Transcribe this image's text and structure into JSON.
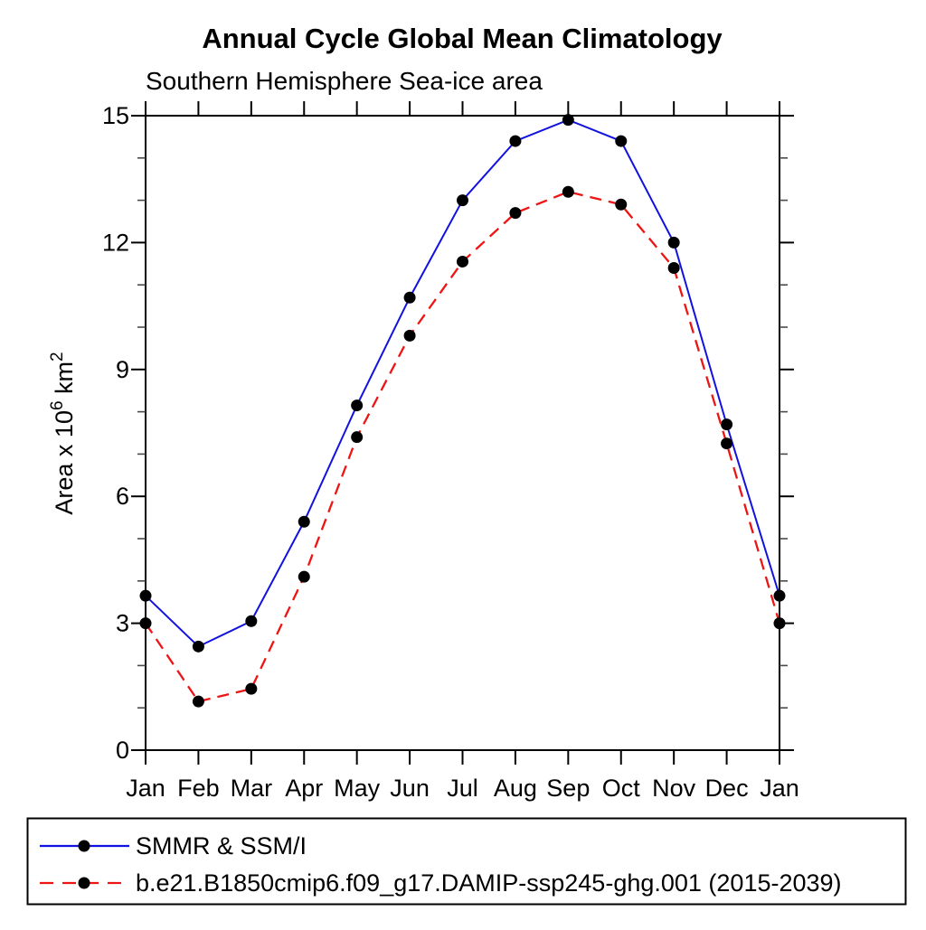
{
  "chart_data": {
    "type": "line",
    "title": "Annual Cycle Global Mean Climatology",
    "subtitle": "Southern Hemisphere Sea-ice area",
    "categories": [
      "Jan",
      "Feb",
      "Mar",
      "Apr",
      "May",
      "Jun",
      "Jul",
      "Aug",
      "Sep",
      "Oct",
      "Nov",
      "Dec",
      "Jan"
    ],
    "xlabel": "",
    "ylabel": "Area x 10^6 km^2",
    "ylabel_parts": [
      {
        "t": "Area x 10",
        "sup": false
      },
      {
        "t": "6",
        "sup": true
      },
      {
        "t": " km",
        "sup": false
      },
      {
        "t": "2",
        "sup": true
      }
    ],
    "ylim": [
      0,
      15
    ],
    "yticks": [
      0,
      3,
      6,
      9,
      12,
      15
    ],
    "ytick_labels": [
      "0",
      "3",
      "6",
      "9",
      "12",
      "15"
    ],
    "ytick_minor_step": 1,
    "grid": false,
    "legend_position": "bottom-box",
    "axis_color": "#000000",
    "minor_tick_color": "#4a4a4a",
    "marker_shape": "filled-circle",
    "series": [
      {
        "name": "SMMR & SSM/I",
        "color": "#1212e0",
        "line_style": "solid",
        "marker_color": "#000000",
        "values": [
          3.65,
          2.45,
          3.05,
          5.4,
          8.15,
          10.7,
          13.0,
          14.4,
          14.9,
          14.4,
          12.0,
          7.7,
          3.65
        ]
      },
      {
        "name": "b.e21.B1850cmip6.f09_g17.DAMIP-ssp245-ghg.001 (2015-2039)",
        "color": "#ee1414",
        "line_style": "dashed",
        "marker_color": "#000000",
        "values": [
          3.0,
          1.15,
          1.45,
          4.1,
          7.4,
          9.8,
          11.55,
          12.7,
          13.2,
          12.9,
          11.4,
          7.25,
          3.0
        ]
      }
    ]
  }
}
